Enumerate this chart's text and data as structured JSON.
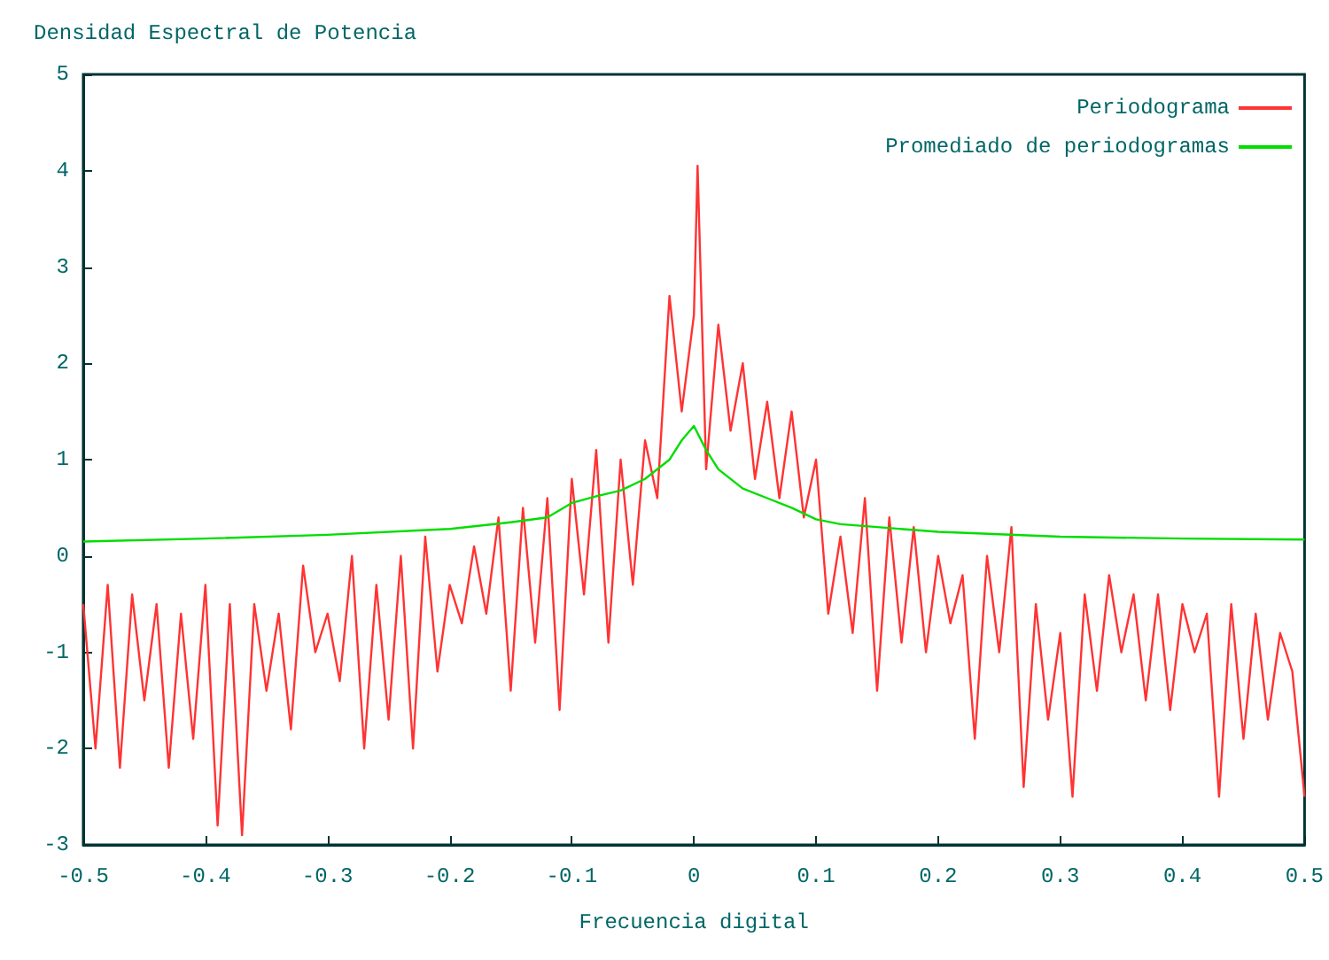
{
  "chart_data": {
    "type": "line",
    "ylabel": "Densidad Espectral de Potencia",
    "xlabel": "Frecuencia digital",
    "xlim": [
      -0.5,
      0.5
    ],
    "xticks": [
      -0.5,
      -0.4,
      -0.3,
      -0.2,
      -0.1,
      0,
      0.1,
      0.2,
      0.3,
      0.4,
      0.5
    ],
    "ylim": [
      -3,
      5
    ],
    "yticks": [
      -3,
      -2,
      -1,
      0,
      1,
      2,
      3,
      4,
      5
    ],
    "grid": false,
    "legend": "top right",
    "marker": "none",
    "line_style": "solid",
    "series": [
      {
        "name": "Periodograma",
        "color": "#ff3333",
        "x": [
          -0.5,
          -0.49,
          -0.48,
          -0.47,
          -0.46,
          -0.45,
          -0.44,
          -0.43,
          -0.42,
          -0.41,
          -0.4,
          -0.39,
          -0.38,
          -0.37,
          -0.36,
          -0.35,
          -0.34,
          -0.33,
          -0.32,
          -0.31,
          -0.3,
          -0.29,
          -0.28,
          -0.27,
          -0.26,
          -0.25,
          -0.24,
          -0.23,
          -0.22,
          -0.21,
          -0.2,
          -0.19,
          -0.18,
          -0.17,
          -0.16,
          -0.15,
          -0.14,
          -0.13,
          -0.12,
          -0.11,
          -0.1,
          -0.09,
          -0.08,
          -0.07,
          -0.06,
          -0.05,
          -0.04,
          -0.03,
          -0.02,
          -0.01,
          0,
          0.003,
          0.01,
          0.02,
          0.03,
          0.04,
          0.05,
          0.06,
          0.07,
          0.08,
          0.09,
          0.1,
          0.11,
          0.12,
          0.13,
          0.14,
          0.15,
          0.16,
          0.17,
          0.18,
          0.19,
          0.2,
          0.21,
          0.22,
          0.23,
          0.24,
          0.25,
          0.26,
          0.27,
          0.28,
          0.29,
          0.3,
          0.31,
          0.32,
          0.33,
          0.34,
          0.35,
          0.36,
          0.37,
          0.38,
          0.39,
          0.4,
          0.41,
          0.42,
          0.43,
          0.44,
          0.45,
          0.46,
          0.47,
          0.48,
          0.49,
          0.5
        ],
        "values": [
          -0.5,
          -2.0,
          -0.3,
          -2.2,
          -0.4,
          -1.5,
          -0.5,
          -2.2,
          -0.6,
          -1.9,
          -0.3,
          -2.8,
          -0.5,
          -2.9,
          -0.5,
          -1.4,
          -0.6,
          -1.8,
          -0.1,
          -1.0,
          -0.6,
          -1.3,
          0.0,
          -2.0,
          -0.3,
          -1.7,
          0.0,
          -2.0,
          0.2,
          -1.2,
          -0.3,
          -0.7,
          0.1,
          -0.6,
          0.4,
          -1.4,
          0.5,
          -0.9,
          0.6,
          -1.6,
          0.8,
          -0.4,
          1.1,
          -0.9,
          1.0,
          -0.3,
          1.2,
          0.6,
          2.7,
          1.5,
          2.5,
          4.05,
          0.9,
          2.4,
          1.3,
          2.0,
          0.8,
          1.6,
          0.6,
          1.5,
          0.4,
          1.0,
          -0.6,
          0.2,
          -0.8,
          0.6,
          -1.4,
          0.4,
          -0.9,
          0.3,
          -1.0,
          0.0,
          -0.7,
          -0.2,
          -1.9,
          0.0,
          -1.0,
          0.3,
          -2.4,
          -0.5,
          -1.7,
          -0.8,
          -2.5,
          -0.4,
          -1.4,
          -0.2,
          -1.0,
          -0.4,
          -1.5,
          -0.4,
          -1.6,
          -0.5,
          -1.0,
          -0.6,
          -2.5,
          -0.5,
          -1.9,
          -0.6,
          -1.7,
          -0.8,
          -1.2,
          -2.5
        ]
      },
      {
        "name": "Promediado de periodogramas",
        "color": "#00dd00",
        "x": [
          -0.5,
          -0.4,
          -0.3,
          -0.2,
          -0.15,
          -0.12,
          -0.1,
          -0.08,
          -0.06,
          -0.04,
          -0.02,
          -0.01,
          0,
          0.01,
          0.02,
          0.04,
          0.06,
          0.08,
          0.1,
          0.12,
          0.15,
          0.2,
          0.3,
          0.4,
          0.5
        ],
        "values": [
          0.15,
          0.18,
          0.22,
          0.28,
          0.35,
          0.4,
          0.55,
          0.62,
          0.68,
          0.8,
          1.0,
          1.2,
          1.35,
          1.1,
          0.9,
          0.7,
          0.6,
          0.5,
          0.38,
          0.33,
          0.3,
          0.25,
          0.2,
          0.18,
          0.17
        ]
      }
    ]
  }
}
